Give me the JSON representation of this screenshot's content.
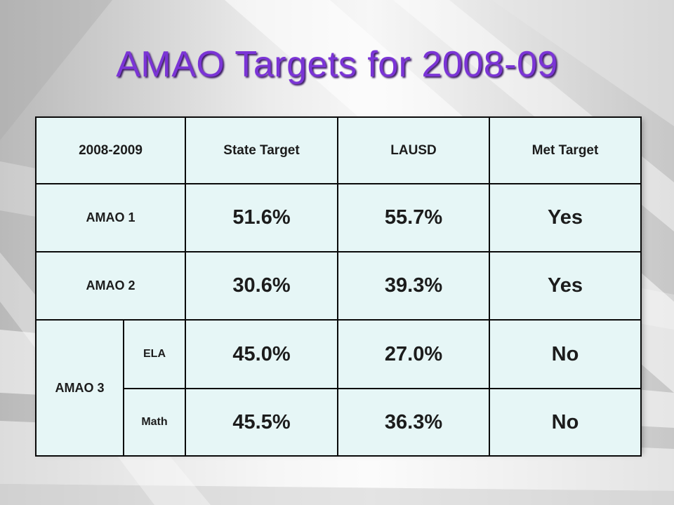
{
  "slide": {
    "title": "AMAO Targets for 2008-09"
  },
  "table": {
    "headers": {
      "year": "2008-2009",
      "state_target": "State Target",
      "lausd": "LAUSD",
      "met_target": "Met Target"
    },
    "amao1": {
      "label": "AMAO 1",
      "state_target": "51.6%",
      "lausd": "55.7%",
      "met": "Yes"
    },
    "amao2": {
      "label": "AMAO 2",
      "state_target": "30.6%",
      "lausd": "39.3%",
      "met": "Yes"
    },
    "amao3": {
      "label": "AMAO 3",
      "ela": {
        "label": "ELA",
        "state_target": "45.0%",
        "lausd": "27.0%",
        "met": "No"
      },
      "math": {
        "label": "Math",
        "state_target": "45.5%",
        "lausd": "36.3%",
        "met": "No"
      }
    }
  },
  "colors": {
    "title": "#7b34d6",
    "cell_fill": "#e6f6f6",
    "border": "#0a0a0a"
  }
}
